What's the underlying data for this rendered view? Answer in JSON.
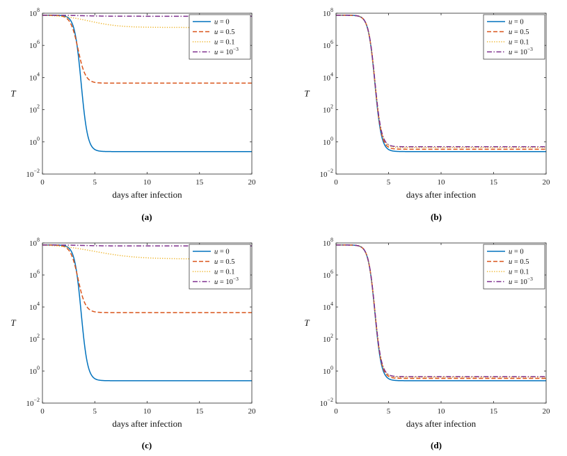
{
  "chart_data": [
    {
      "type": "line",
      "panel_label": "(a)",
      "xlabel": "days after infection",
      "ylabel": "T",
      "yscale": "log",
      "xlim": [
        0,
        20
      ],
      "ylim": [
        0.01,
        100000000
      ],
      "xticks": [
        "0",
        "5",
        "10",
        "15",
        "20"
      ],
      "yticks": [
        {
          "base": "10",
          "exp": "-2"
        },
        {
          "base": "10",
          "exp": "0"
        },
        {
          "base": "10",
          "exp": "2"
        },
        {
          "base": "10",
          "exp": "4"
        },
        {
          "base": "10",
          "exp": "6"
        },
        {
          "base": "10",
          "exp": "8"
        }
      ],
      "legend_position": "top-right",
      "series": [
        {
          "name": "u = 0",
          "legend_var": "u",
          "legend_val": " = 0",
          "legend_exp": "",
          "color": "#0072BD",
          "dash": "solid",
          "start": 75000000.0,
          "plateau": 0.25,
          "midpoint": 3.7,
          "rate": 3.2
        },
        {
          "name": "u = 0.5",
          "legend_var": "u",
          "legend_val": " = 0.5",
          "legend_exp": "",
          "color": "#D95319",
          "dash": "dashed",
          "start": 75000000.0,
          "plateau": 4500,
          "midpoint": 3.4,
          "rate": 2.8
        },
        {
          "name": "u = 0.1",
          "legend_var": "u",
          "legend_val": " = 0.1",
          "legend_exp": "",
          "color": "#EDB120",
          "dash": "dotted",
          "start": 75000000.0,
          "plateau": 13000000.0,
          "midpoint": 4.5,
          "rate": 0.7
        },
        {
          "name": "u = 10^-3",
          "legend_var": "u",
          "legend_val": " = 10",
          "legend_exp": "−3",
          "color": "#7E2F8E",
          "dash": "dashdot",
          "start": 75000000.0,
          "plateau": 65000000.0,
          "midpoint": 4.0,
          "rate": 1.0
        }
      ]
    },
    {
      "type": "line",
      "panel_label": "(b)",
      "xlabel": "days after infection",
      "ylabel": "T",
      "yscale": "log",
      "xlim": [
        0,
        20
      ],
      "ylim": [
        0.01,
        100000000
      ],
      "xticks": [
        "0",
        "5",
        "10",
        "15",
        "20"
      ],
      "yticks": [
        {
          "base": "10",
          "exp": "-2"
        },
        {
          "base": "10",
          "exp": "0"
        },
        {
          "base": "10",
          "exp": "2"
        },
        {
          "base": "10",
          "exp": "4"
        },
        {
          "base": "10",
          "exp": "6"
        },
        {
          "base": "10",
          "exp": "8"
        }
      ],
      "legend_position": "top-right",
      "series": [
        {
          "name": "u = 0",
          "legend_var": "u",
          "legend_val": " = 0",
          "legend_exp": "",
          "color": "#0072BD",
          "dash": "solid",
          "start": 75000000.0,
          "plateau": 0.25,
          "midpoint": 3.7,
          "rate": 3.2
        },
        {
          "name": "u = 0.5",
          "legend_var": "u",
          "legend_val": " = 0.5",
          "legend_exp": "",
          "color": "#D95319",
          "dash": "dashed",
          "start": 75000000.0,
          "plateau": 0.35,
          "midpoint": 3.7,
          "rate": 3.2
        },
        {
          "name": "u = 0.1",
          "legend_var": "u",
          "legend_val": " = 0.1",
          "legend_exp": "",
          "color": "#EDB120",
          "dash": "dotted",
          "start": 75000000.0,
          "plateau": 0.45,
          "midpoint": 3.7,
          "rate": 3.2
        },
        {
          "name": "u = 10^-3",
          "legend_var": "u",
          "legend_val": " = 10",
          "legend_exp": "−3",
          "color": "#7E2F8E",
          "dash": "dashdot",
          "start": 75000000.0,
          "plateau": 0.5,
          "midpoint": 3.7,
          "rate": 3.2
        }
      ]
    },
    {
      "type": "line",
      "panel_label": "(c)",
      "xlabel": "days after infection",
      "ylabel": "T",
      "yscale": "log",
      "xlim": [
        0,
        20
      ],
      "ylim": [
        0.01,
        100000000
      ],
      "xticks": [
        "0",
        "5",
        "10",
        "15",
        "20"
      ],
      "yticks": [
        {
          "base": "10",
          "exp": "-2"
        },
        {
          "base": "10",
          "exp": "0"
        },
        {
          "base": "10",
          "exp": "2"
        },
        {
          "base": "10",
          "exp": "4"
        },
        {
          "base": "10",
          "exp": "6"
        },
        {
          "base": "10",
          "exp": "8"
        }
      ],
      "legend_position": "top-right",
      "series": [
        {
          "name": "u = 0",
          "legend_var": "u",
          "legend_val": " = 0",
          "legend_exp": "",
          "color": "#0072BD",
          "dash": "solid",
          "start": 75000000.0,
          "plateau": 0.25,
          "midpoint": 3.7,
          "rate": 3.2
        },
        {
          "name": "u = 0.5",
          "legend_var": "u",
          "legend_val": " = 0.5",
          "legend_exp": "",
          "color": "#D95319",
          "dash": "dashed",
          "start": 75000000.0,
          "plateau": 4500,
          "midpoint": 3.4,
          "rate": 2.8
        },
        {
          "name": "u = 0.1",
          "legend_var": "u",
          "legend_val": " = 0.1",
          "legend_exp": "",
          "color": "#EDB120",
          "dash": "dotted",
          "start": 75000000.0,
          "plateau": 10000000.0,
          "midpoint": 5.0,
          "rate": 0.5
        },
        {
          "name": "u = 10^-3",
          "legend_var": "u",
          "legend_val": " = 10",
          "legend_exp": "−3",
          "color": "#7E2F8E",
          "dash": "dashdot",
          "start": 75000000.0,
          "plateau": 65000000.0,
          "midpoint": 4.0,
          "rate": 1.0
        }
      ]
    },
    {
      "type": "line",
      "panel_label": "(d)",
      "xlabel": "days after infection",
      "ylabel": "T",
      "yscale": "log",
      "xlim": [
        0,
        20
      ],
      "ylim": [
        0.01,
        100000000
      ],
      "xticks": [
        "0",
        "5",
        "10",
        "15",
        "20"
      ],
      "yticks": [
        {
          "base": "10",
          "exp": "-2"
        },
        {
          "base": "10",
          "exp": "0"
        },
        {
          "base": "10",
          "exp": "2"
        },
        {
          "base": "10",
          "exp": "4"
        },
        {
          "base": "10",
          "exp": "6"
        },
        {
          "base": "10",
          "exp": "8"
        }
      ],
      "legend_position": "top-right",
      "series": [
        {
          "name": "u = 0",
          "legend_var": "u",
          "legend_val": " = 0",
          "legend_exp": "",
          "color": "#0072BD",
          "dash": "solid",
          "start": 75000000.0,
          "plateau": 0.25,
          "midpoint": 3.7,
          "rate": 3.2
        },
        {
          "name": "u = 0.5",
          "legend_var": "u",
          "legend_val": " = 0.5",
          "legend_exp": "",
          "color": "#D95319",
          "dash": "dashed",
          "start": 75000000.0,
          "plateau": 0.35,
          "midpoint": 3.7,
          "rate": 3.2
        },
        {
          "name": "u = 0.1",
          "legend_var": "u",
          "legend_val": " = 0.1",
          "legend_exp": "",
          "color": "#EDB120",
          "dash": "dotted",
          "start": 75000000.0,
          "plateau": 0.42,
          "midpoint": 3.7,
          "rate": 3.2
        },
        {
          "name": "u = 10^-3",
          "legend_var": "u",
          "legend_val": " = 10",
          "legend_exp": "−3",
          "color": "#7E2F8E",
          "dash": "dashdot",
          "start": 75000000.0,
          "plateau": 0.45,
          "midpoint": 3.7,
          "rate": 3.2
        }
      ]
    }
  ]
}
